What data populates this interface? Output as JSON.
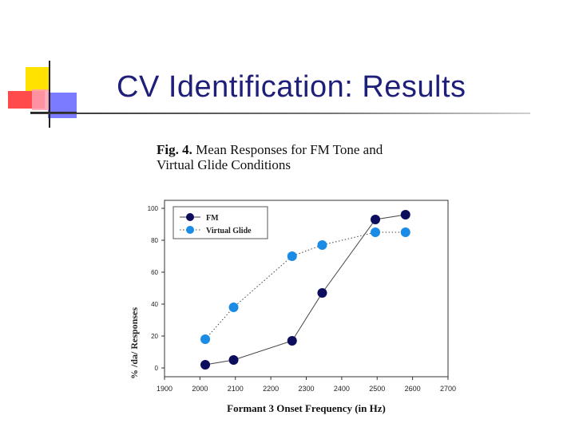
{
  "slide": {
    "title": "CV Identification:  Results"
  },
  "figure": {
    "caption_number": "Fig. 4.",
    "caption_text": "  Mean Responses for FM Tone and",
    "caption_text_line2": "Virtual Glide Conditions"
  },
  "chart_data": {
    "type": "line",
    "xlabel": "Formant 3 Onset Frequency (in Hz)",
    "ylabel": "% /da/ Responses",
    "xlim": [
      1900,
      2700
    ],
    "ylim": [
      0,
      100
    ],
    "x_ticks": [
      "1900",
      "2000",
      "2100",
      "2200",
      "2300",
      "2400",
      "2500",
      "2600",
      "2700"
    ],
    "y_ticks": [
      "0",
      "20",
      "40",
      "60",
      "80",
      "100"
    ],
    "grid": false,
    "legend_position": "top-left",
    "series": [
      {
        "name": "FM",
        "color": "#0d0d5e",
        "line_style": "solid",
        "x": [
          2015,
          2095,
          2260,
          2345,
          2495,
          2580
        ],
        "y": [
          2,
          5,
          17,
          47,
          93,
          96
        ]
      },
      {
        "name": "Virtual Glide",
        "color": "#1a8ce6",
        "line_style": "dotted",
        "x": [
          2015,
          2095,
          2260,
          2345,
          2495,
          2580
        ],
        "y": [
          18,
          38,
          70,
          77,
          85,
          85
        ]
      }
    ]
  }
}
